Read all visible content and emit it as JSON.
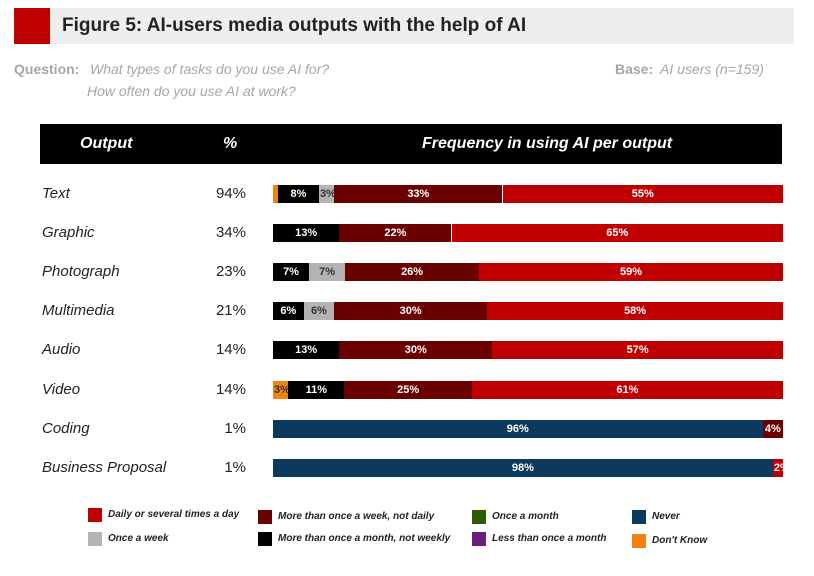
{
  "figure": {
    "title": "Figure 5: AI-users media outputs with the help of AI",
    "question_label": "Question:",
    "question_line1": "What types of tasks do you use AI for?",
    "question_line2": "How often do you use AI at work?",
    "base_label": "Base:",
    "base_text": "AI users (n=159)"
  },
  "colors": {
    "daily": "#c00000",
    "weekly_not_daily": "#6b0000",
    "once_month": "#2e5a00",
    "never": "#0b3a5e",
    "once_week": "#b3b3b3",
    "monthly_not_weekly": "#000000",
    "less_than_month": "#6a1f7a",
    "dont_know": "#f0820f"
  },
  "chart_data": {
    "type": "bar",
    "orientation": "horizontal",
    "stacked": true,
    "title": "Figure 5: AI-users media outputs with the help of AI",
    "columns": [
      "Output",
      "%",
      "Frequency in using AI per output"
    ],
    "categories": [
      "Text",
      "Graphic",
      "Photograph",
      "Multimedia",
      "Audio",
      "Video",
      "Coding",
      "Business Proposal"
    ],
    "usage_pct": [
      "94%",
      "34%",
      "23%",
      "21%",
      "14%",
      "14%",
      "1%",
      "1%"
    ],
    "segment_order": [
      "dont_know",
      "monthly_not_weekly",
      "once_week",
      "weekly_not_daily",
      "never",
      "daily"
    ],
    "rows": [
      {
        "segments": [
          {
            "key": "dont_know",
            "value": 1,
            "label": ""
          },
          {
            "key": "monthly_not_weekly",
            "value": 8,
            "label": "8%"
          },
          {
            "key": "once_week",
            "value": 3,
            "label": "3%"
          },
          {
            "key": "weekly_not_daily",
            "value": 33,
            "label": "33%"
          },
          {
            "key": "daily",
            "value": 55,
            "label": "55%"
          }
        ]
      },
      {
        "segments": [
          {
            "key": "monthly_not_weekly",
            "value": 13,
            "label": "13%"
          },
          {
            "key": "weekly_not_daily",
            "value": 22,
            "label": "22%"
          },
          {
            "key": "daily",
            "value": 65,
            "label": "65%"
          }
        ]
      },
      {
        "segments": [
          {
            "key": "monthly_not_weekly",
            "value": 7,
            "label": "7%"
          },
          {
            "key": "once_week",
            "value": 7,
            "label": "7%"
          },
          {
            "key": "weekly_not_daily",
            "value": 26,
            "label": "26%"
          },
          {
            "key": "daily",
            "value": 59,
            "label": "59%"
          }
        ]
      },
      {
        "segments": [
          {
            "key": "monthly_not_weekly",
            "value": 6,
            "label": "6%"
          },
          {
            "key": "once_week",
            "value": 6,
            "label": "6%"
          },
          {
            "key": "weekly_not_daily",
            "value": 30,
            "label": "30%"
          },
          {
            "key": "daily",
            "value": 58,
            "label": "58%"
          }
        ]
      },
      {
        "segments": [
          {
            "key": "monthly_not_weekly",
            "value": 13,
            "label": "13%"
          },
          {
            "key": "weekly_not_daily",
            "value": 30,
            "label": "30%"
          },
          {
            "key": "daily",
            "value": 57,
            "label": "57%"
          }
        ]
      },
      {
        "segments": [
          {
            "key": "dont_know",
            "value": 3,
            "label": "3%"
          },
          {
            "key": "monthly_not_weekly",
            "value": 11,
            "label": "11%"
          },
          {
            "key": "weekly_not_daily",
            "value": 25,
            "label": "25%"
          },
          {
            "key": "daily",
            "value": 61,
            "label": "61%"
          }
        ]
      },
      {
        "segments": [
          {
            "key": "never",
            "value": 96,
            "label": "96%"
          },
          {
            "key": "weekly_not_daily",
            "value": 4,
            "label": "4%"
          }
        ]
      },
      {
        "segments": [
          {
            "key": "never",
            "value": 98,
            "label": "98%"
          },
          {
            "key": "daily",
            "value": 2,
            "label": "2%"
          }
        ]
      }
    ],
    "legend": [
      {
        "key": "daily",
        "label": "Daily or several times a day"
      },
      {
        "key": "weekly_not_daily",
        "label": "More than once a week, not daily"
      },
      {
        "key": "once_month",
        "label": "Once a month"
      },
      {
        "key": "never",
        "label": "Never"
      },
      {
        "key": "once_week",
        "label": "Once a week"
      },
      {
        "key": "monthly_not_weekly",
        "label": "More than once a month, not weekly"
      },
      {
        "key": "less_than_month",
        "label": "Less than once a month"
      },
      {
        "key": "dont_know",
        "label": "Don't Know"
      }
    ],
    "xlim": [
      0,
      100
    ]
  }
}
